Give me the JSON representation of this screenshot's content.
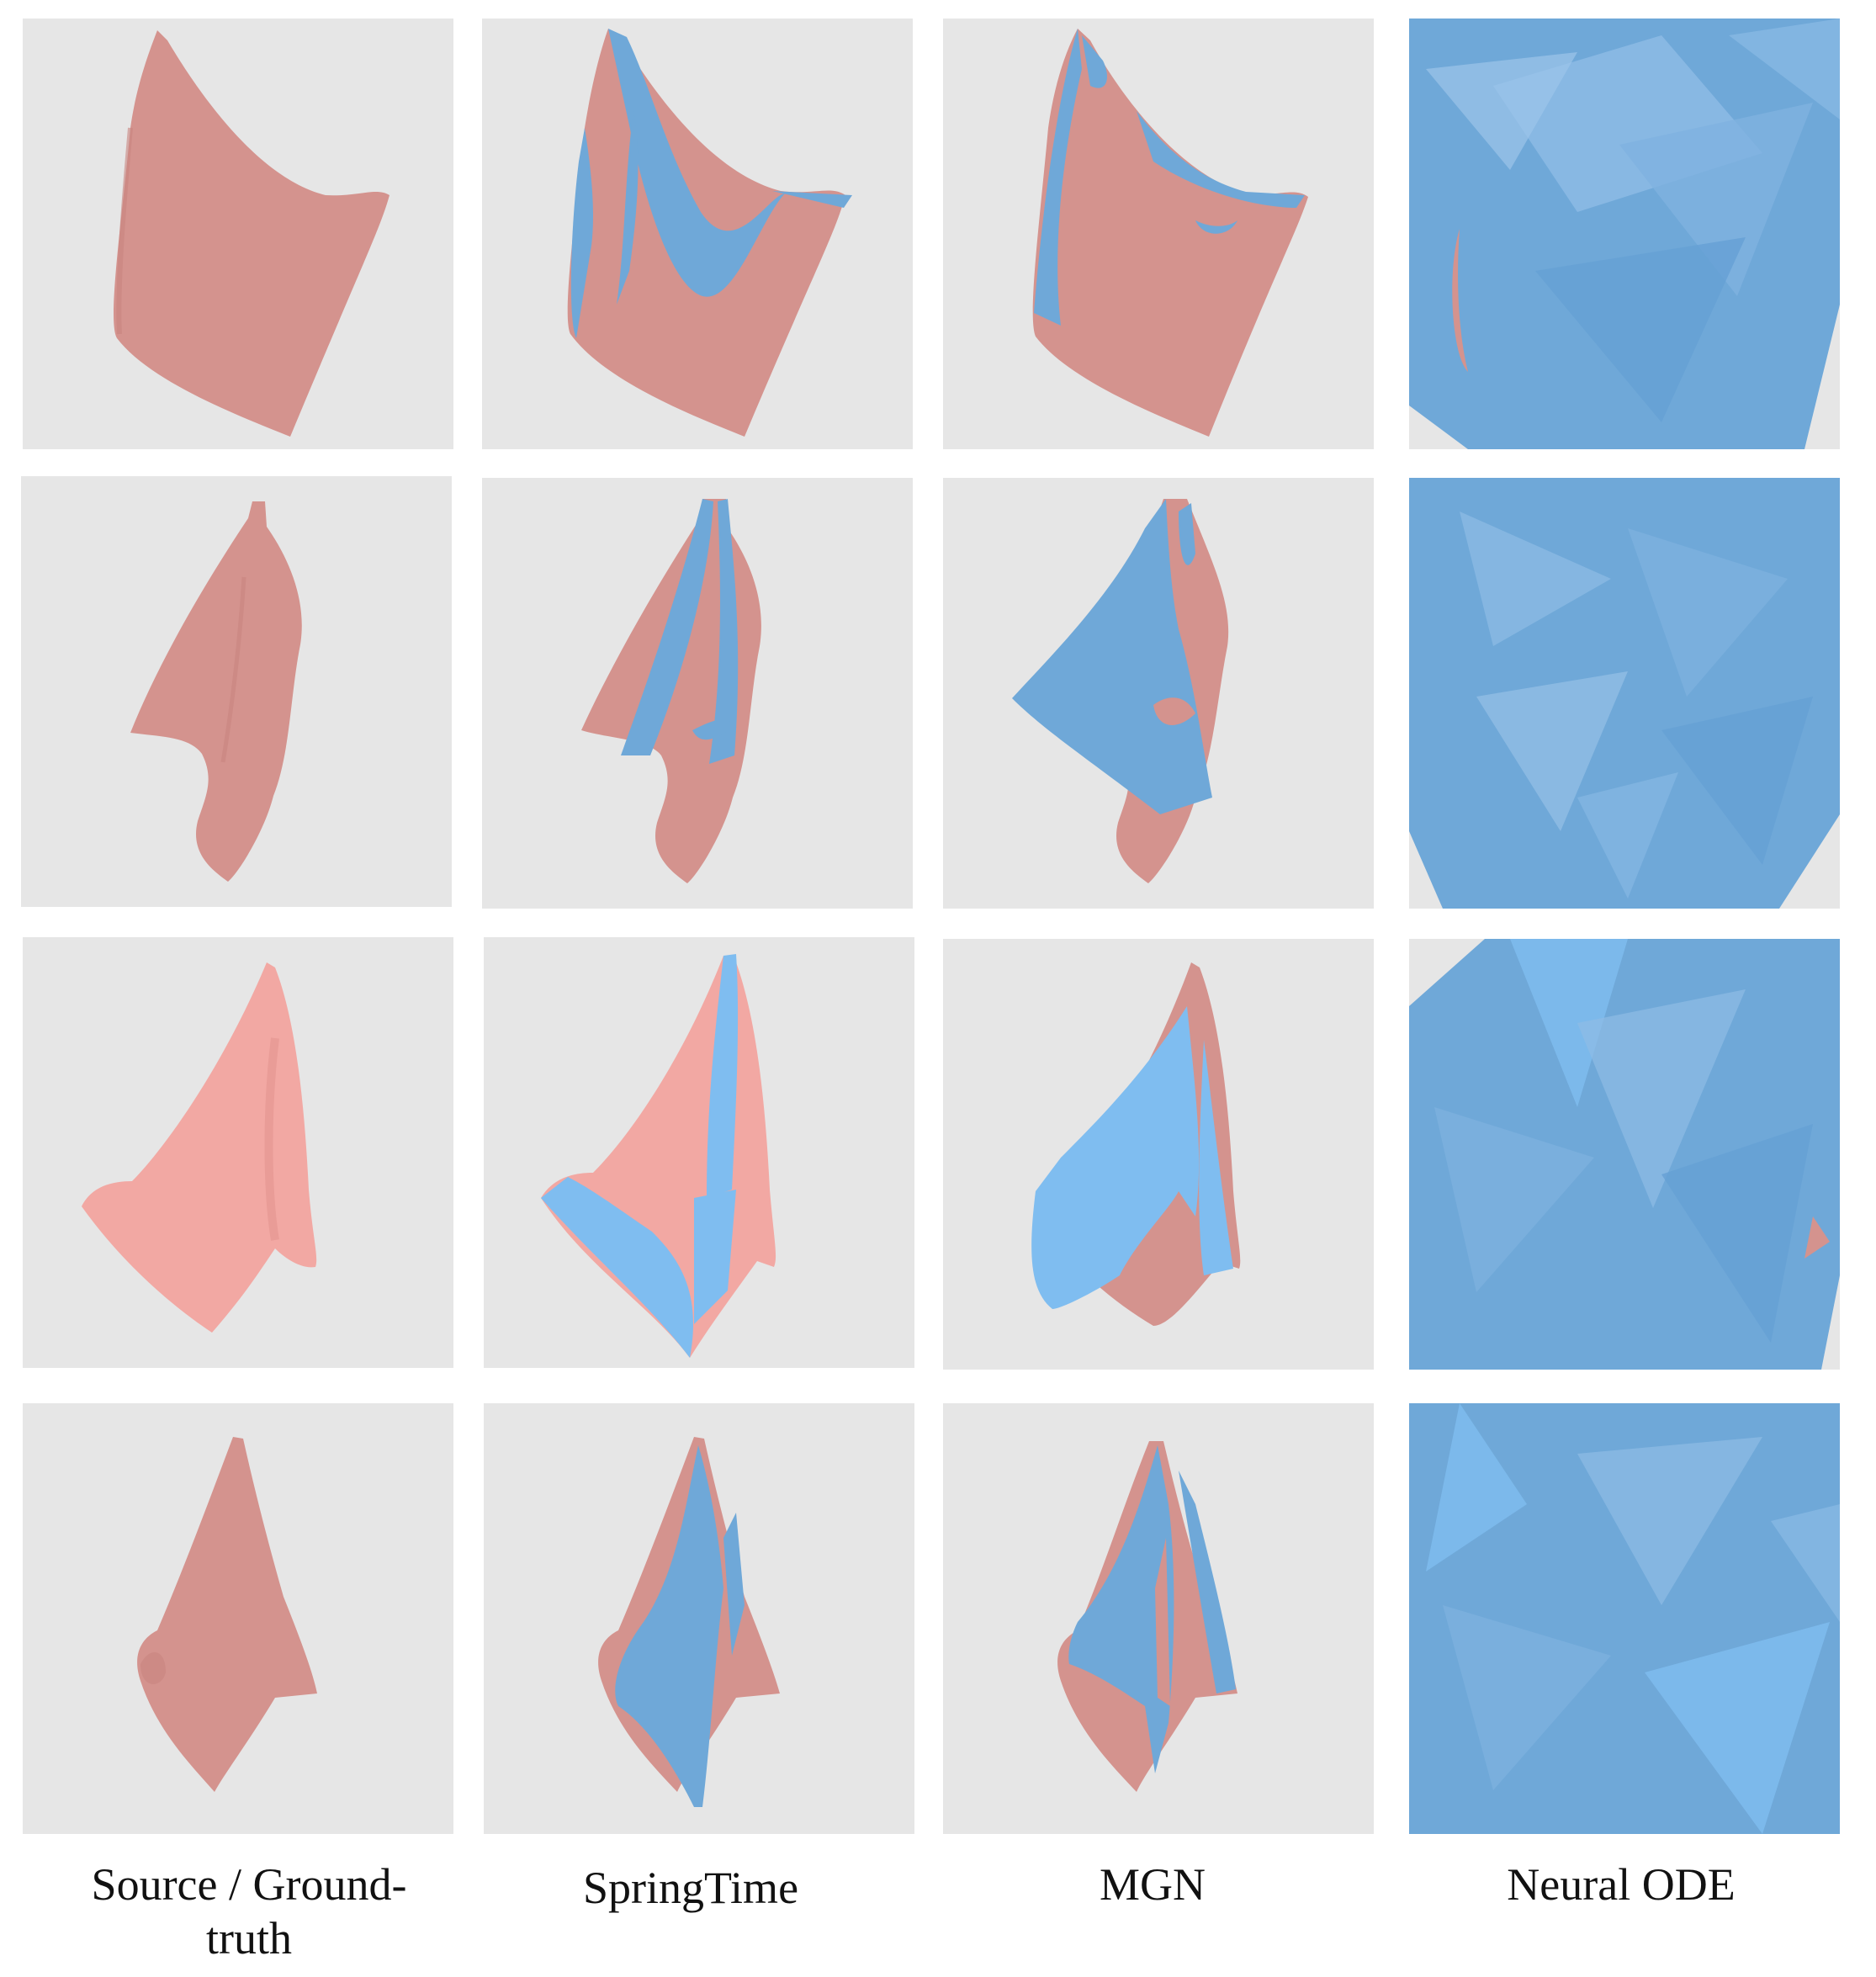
{
  "figure": {
    "columns": [
      {
        "id": "source",
        "caption": "Source / Ground-\ntruth"
      },
      {
        "id": "springtime",
        "caption": "SpringTime"
      },
      {
        "id": "mgn",
        "caption": "MGN"
      },
      {
        "id": "neuralode",
        "caption": "Neural ODE"
      }
    ],
    "rows": 4,
    "colors": {
      "ground_truth": "#d4938e",
      "ground_truth_light": "#f2a8a3",
      "prediction": "#6fa8d8",
      "prediction_light": "#7fbdf0",
      "background": "#e6e6e6"
    }
  }
}
